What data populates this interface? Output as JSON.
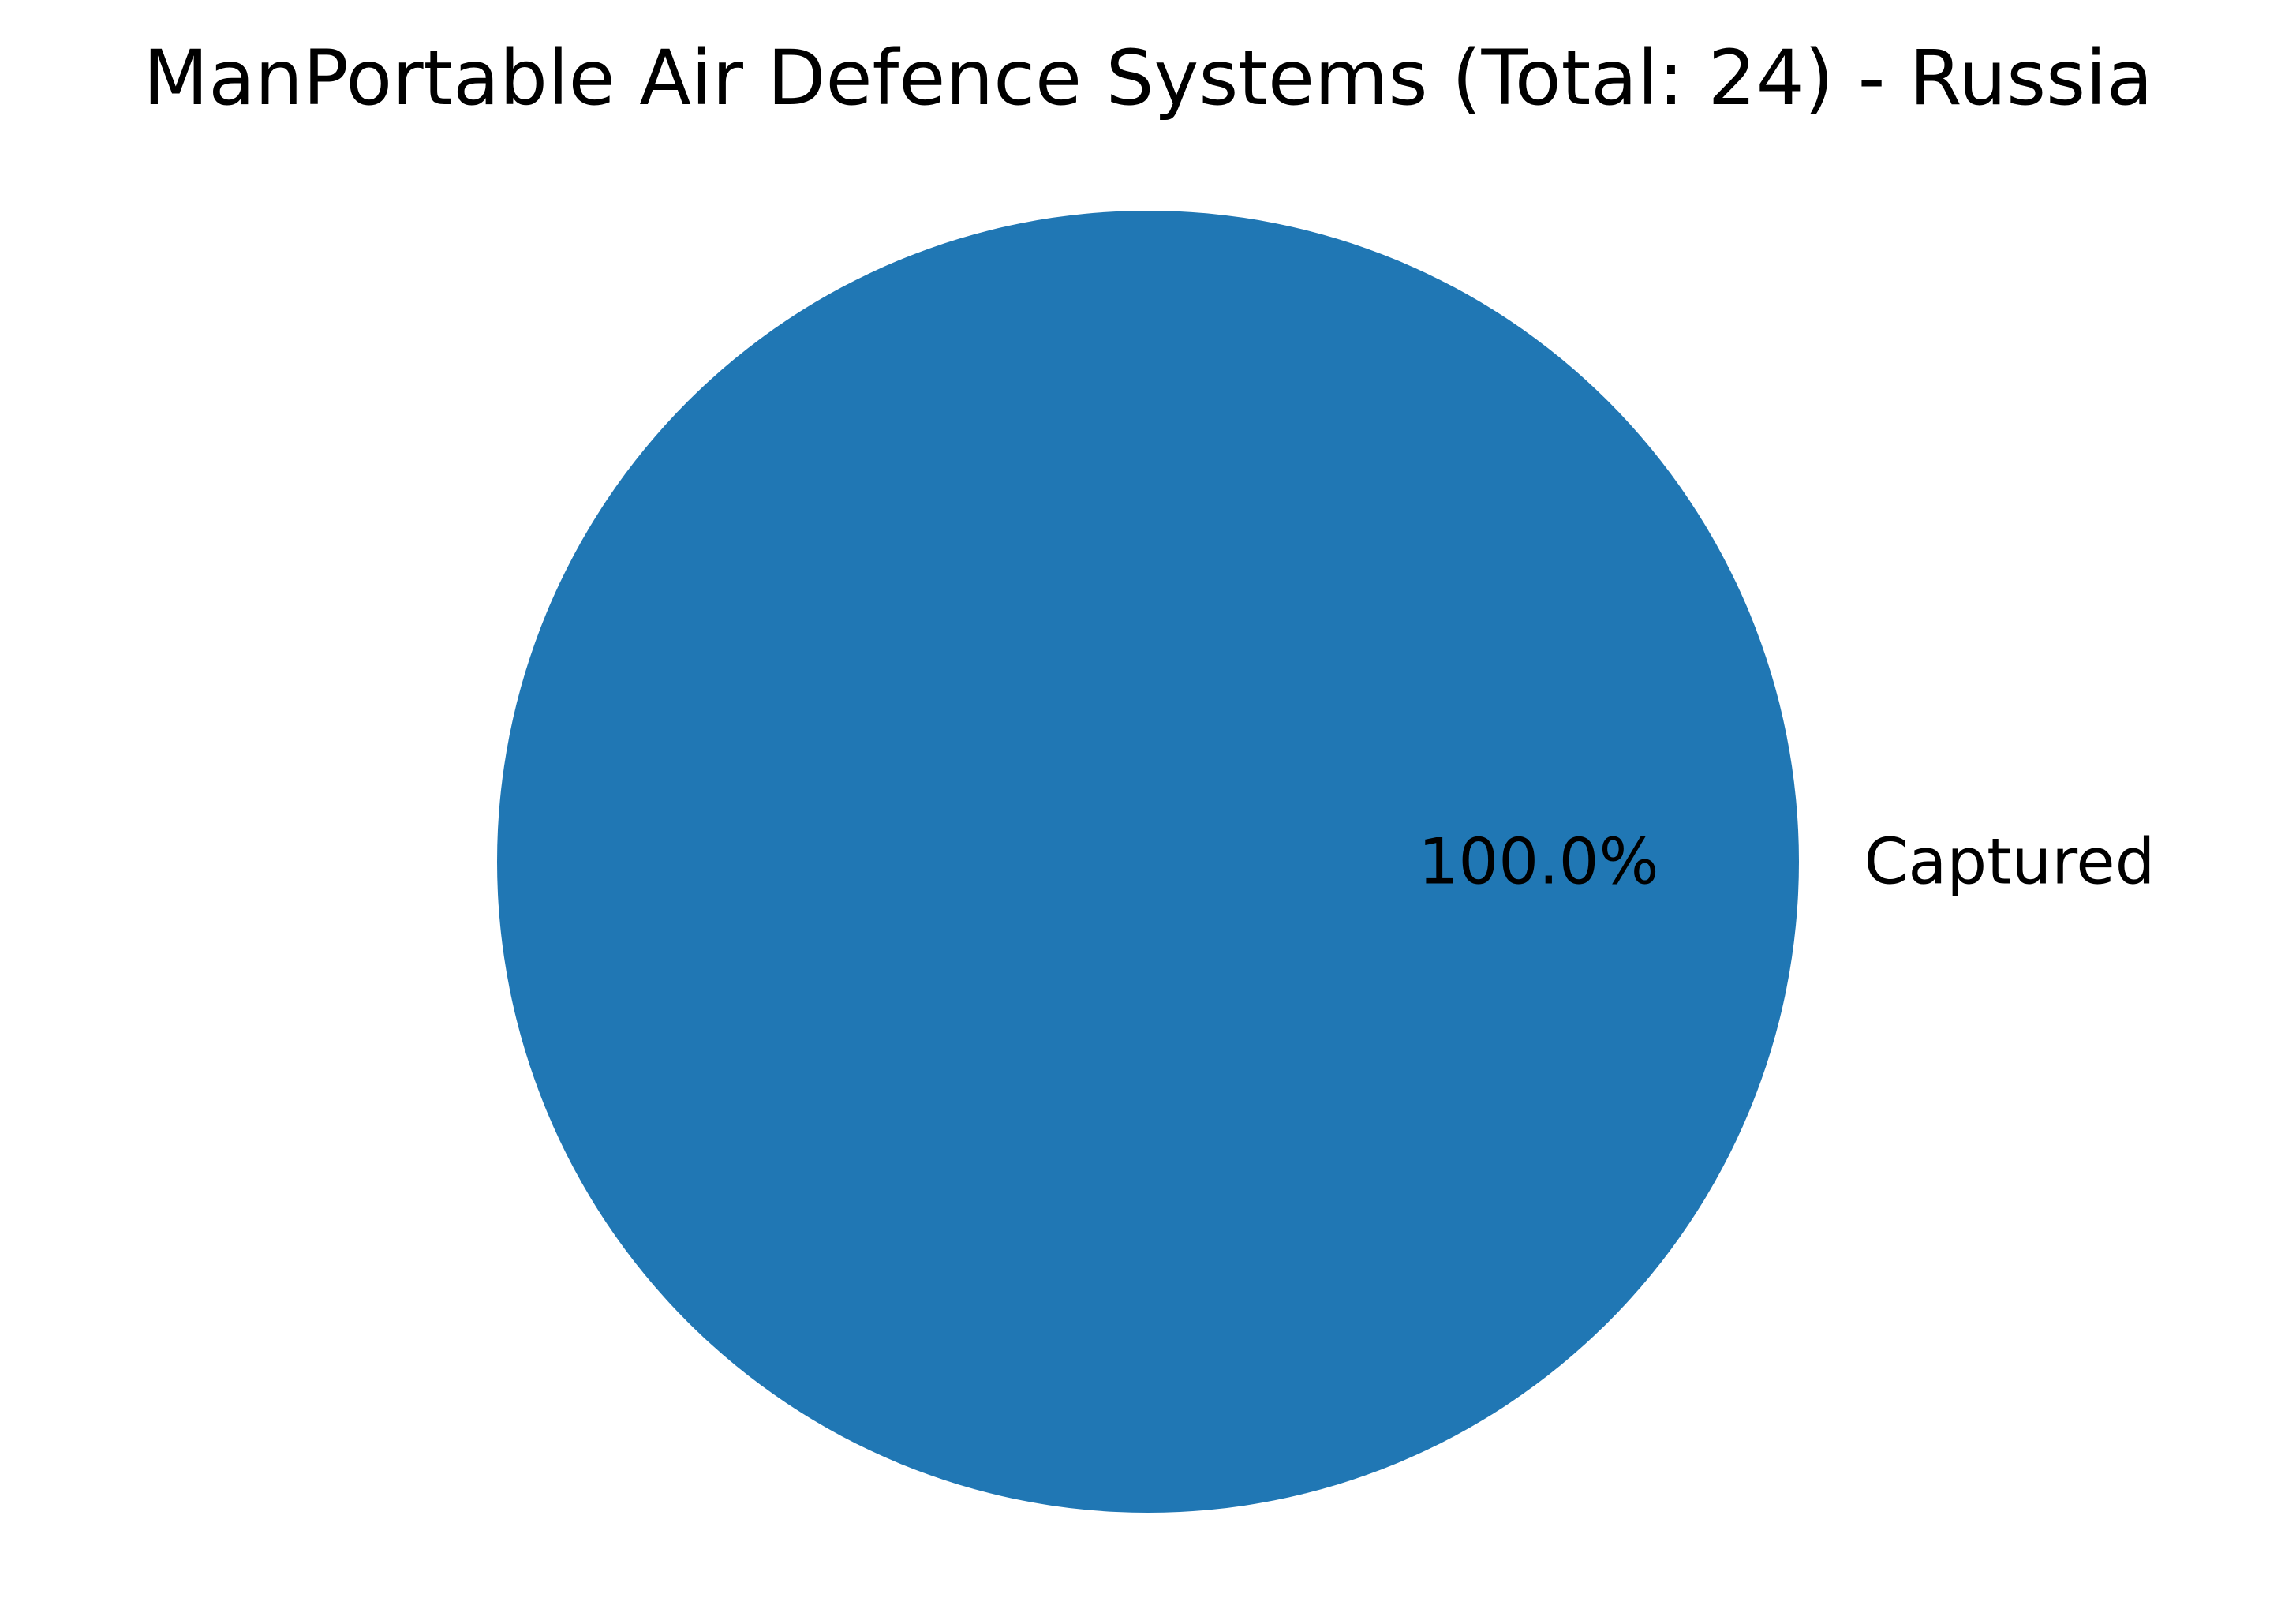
{
  "chart_data": {
    "type": "pie",
    "title": "ManPortable Air Defence Systems (Total: 24) - Russia",
    "slices": [
      {
        "label": "Captured",
        "value": 24,
        "percent_label": "100.0%",
        "color": "#2077b4"
      }
    ]
  }
}
